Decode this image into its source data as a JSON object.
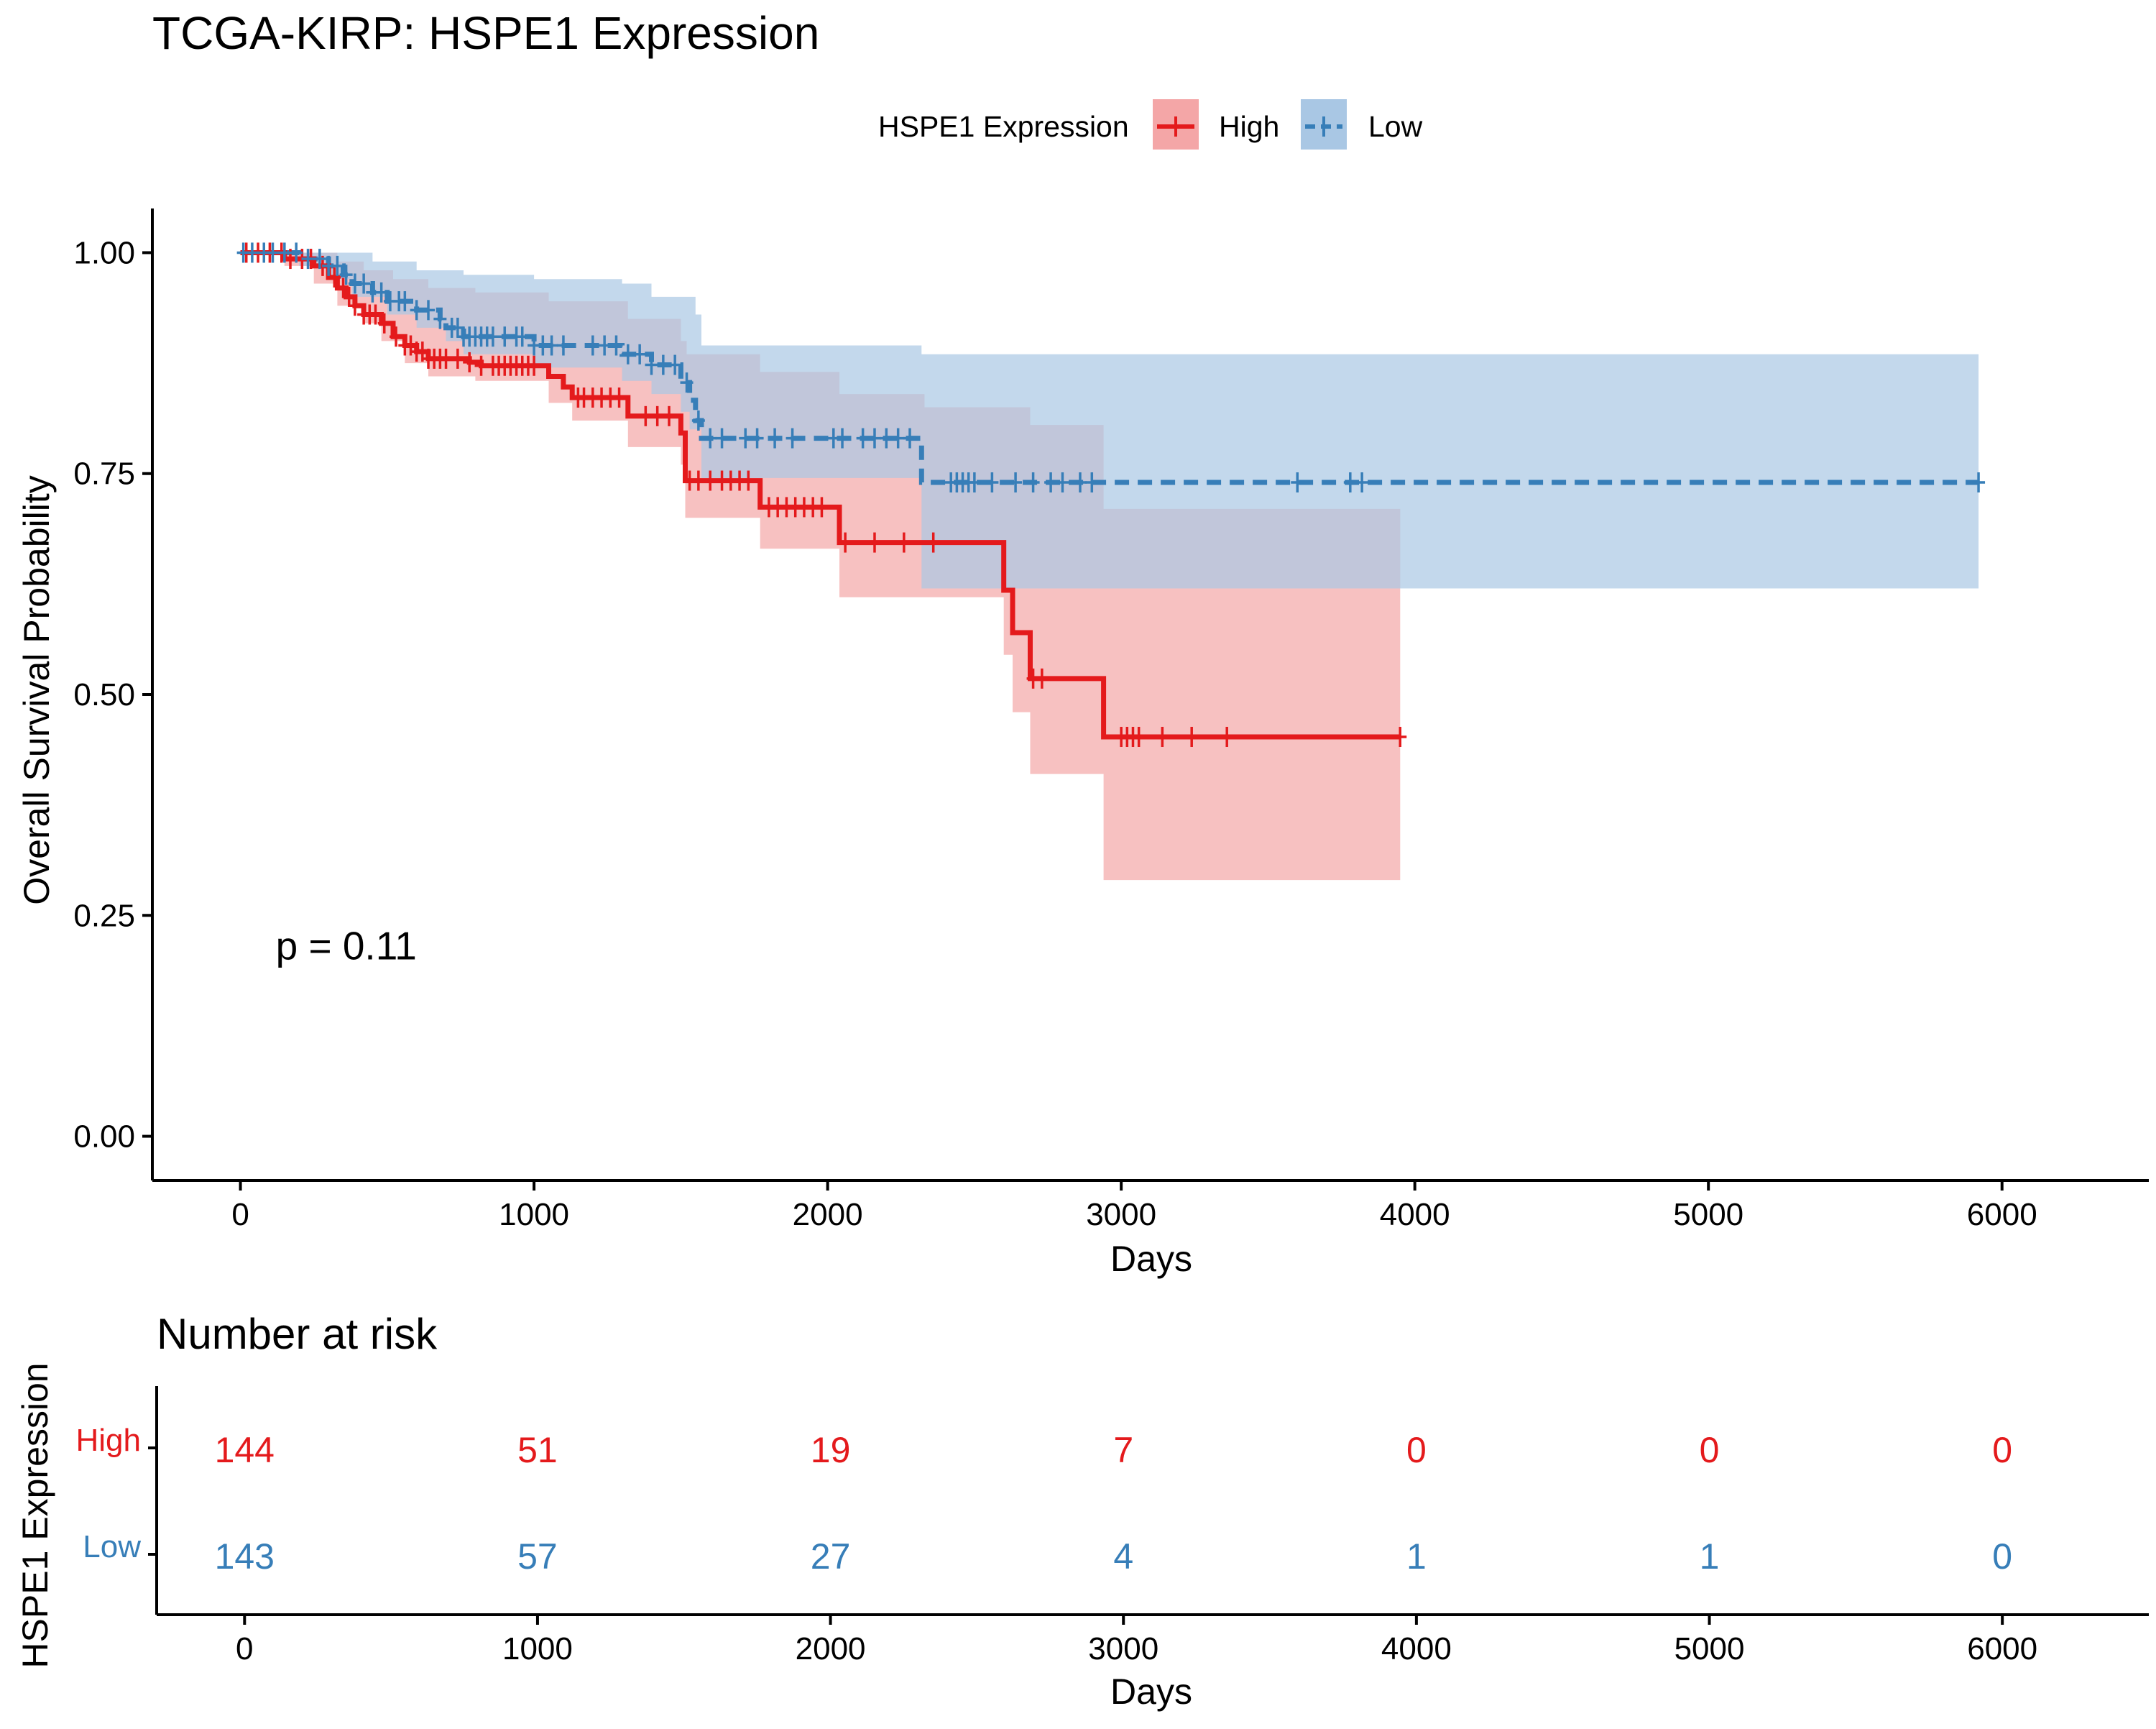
{
  "chart_data": {
    "type": "kaplan-meier",
    "title": "TCGA-KIRP: HSPE1 Expression",
    "xlabel": "Days",
    "ylabel": "Overall Survival Probability",
    "xlim": [
      -300,
      6500
    ],
    "ylim": [
      -0.05,
      1.05
    ],
    "xticks": [
      0,
      1000,
      2000,
      3000,
      4000,
      5000,
      6000
    ],
    "yticks": [
      0.0,
      0.25,
      0.5,
      0.75,
      1.0
    ],
    "ytick_labels": [
      "0.00",
      "0.25",
      "0.50",
      "0.75",
      "1.00"
    ],
    "legend": {
      "title": "HSPE1 Expression",
      "placement": "top",
      "entries": [
        "High",
        "Low"
      ]
    },
    "pvalue_text": "p = 0.11",
    "pvalue_pos": [
      120,
      0.2
    ],
    "series": [
      {
        "name": "High",
        "color": "#e41a1c",
        "band_color": "#f4a6a7",
        "dash": "solid",
        "steps": [
          [
            0,
            1.0
          ],
          [
            150,
            0.993
          ],
          [
            250,
            0.985
          ],
          [
            300,
            0.972
          ],
          [
            330,
            0.96
          ],
          [
            360,
            0.95
          ],
          [
            390,
            0.94
          ],
          [
            420,
            0.93
          ],
          [
            480,
            0.92
          ],
          [
            520,
            0.905
          ],
          [
            560,
            0.895
          ],
          [
            600,
            0.888
          ],
          [
            640,
            0.88
          ],
          [
            780,
            0.876
          ],
          [
            820,
            0.872
          ],
          [
            1050,
            0.86
          ],
          [
            1100,
            0.848
          ],
          [
            1130,
            0.836
          ],
          [
            1320,
            0.815
          ],
          [
            1500,
            0.796
          ],
          [
            1515,
            0.742
          ],
          [
            1770,
            0.712
          ],
          [
            2040,
            0.672
          ],
          [
            2600,
            0.618
          ],
          [
            2630,
            0.57
          ],
          [
            2690,
            0.518
          ],
          [
            2940,
            0.452
          ],
          [
            3950,
            0.452
          ]
        ],
        "upper": [
          [
            0,
            1.0
          ],
          [
            150,
            1.0
          ],
          [
            250,
            1.0
          ],
          [
            330,
            0.99
          ],
          [
            420,
            0.98
          ],
          [
            520,
            0.97
          ],
          [
            640,
            0.96
          ],
          [
            800,
            0.955
          ],
          [
            1050,
            0.945
          ],
          [
            1320,
            0.925
          ],
          [
            1500,
            0.9
          ],
          [
            1520,
            0.885
          ],
          [
            1770,
            0.865
          ],
          [
            2040,
            0.84
          ],
          [
            2330,
            0.825
          ],
          [
            2600,
            0.825
          ],
          [
            2690,
            0.805
          ],
          [
            2940,
            0.71
          ],
          [
            3950,
            0.71
          ]
        ],
        "lower": [
          [
            0,
            1.0
          ],
          [
            150,
            0.985
          ],
          [
            250,
            0.965
          ],
          [
            330,
            0.94
          ],
          [
            420,
            0.92
          ],
          [
            480,
            0.9
          ],
          [
            560,
            0.875
          ],
          [
            640,
            0.86
          ],
          [
            800,
            0.855
          ],
          [
            1050,
            0.83
          ],
          [
            1130,
            0.81
          ],
          [
            1320,
            0.78
          ],
          [
            1500,
            0.76
          ],
          [
            1515,
            0.7
          ],
          [
            1770,
            0.665
          ],
          [
            2040,
            0.61
          ],
          [
            2600,
            0.545
          ],
          [
            2630,
            0.48
          ],
          [
            2690,
            0.41
          ],
          [
            2940,
            0.29
          ],
          [
            3950,
            0.29
          ]
        ],
        "censor_x": [
          20,
          60,
          100,
          140,
          170,
          210,
          240,
          280,
          320,
          350,
          370,
          390,
          420,
          440,
          460,
          490,
          530,
          560,
          580,
          600,
          620,
          640,
          660,
          680,
          700,
          740,
          780,
          820,
          860,
          880,
          900,
          920,
          940,
          960,
          980,
          1000,
          1150,
          1170,
          1200,
          1230,
          1260,
          1290,
          1380,
          1420,
          1460,
          1530,
          1560,
          1600,
          1640,
          1670,
          1700,
          1730,
          1800,
          1830,
          1860,
          1890,
          1920,
          1950,
          1980,
          2060,
          2160,
          2260,
          2360,
          2700,
          2730,
          3000,
          3020,
          3040,
          3060,
          3140,
          3240,
          3360,
          3950
        ]
      },
      {
        "name": "Low",
        "color": "#377eb8",
        "band_color": "#a9c7e4",
        "dash": "dashed",
        "steps": [
          [
            0,
            1.0
          ],
          [
            200,
            0.993
          ],
          [
            300,
            0.985
          ],
          [
            350,
            0.975
          ],
          [
            380,
            0.965
          ],
          [
            450,
            0.955
          ],
          [
            500,
            0.945
          ],
          [
            600,
            0.935
          ],
          [
            680,
            0.925
          ],
          [
            700,
            0.915
          ],
          [
            760,
            0.905
          ],
          [
            1000,
            0.895
          ],
          [
            1300,
            0.885
          ],
          [
            1400,
            0.873
          ],
          [
            1500,
            0.853
          ],
          [
            1530,
            0.833
          ],
          [
            1550,
            0.81
          ],
          [
            1570,
            0.79
          ],
          [
            2320,
            0.74
          ],
          [
            5920,
            0.74
          ]
        ],
        "upper": [
          [
            0,
            1.0
          ],
          [
            300,
            1.0
          ],
          [
            450,
            0.99
          ],
          [
            600,
            0.98
          ],
          [
            760,
            0.975
          ],
          [
            1000,
            0.97
          ],
          [
            1300,
            0.965
          ],
          [
            1400,
            0.95
          ],
          [
            1550,
            0.93
          ],
          [
            1570,
            0.895
          ],
          [
            2320,
            0.885
          ],
          [
            5920,
            0.885
          ]
        ],
        "lower": [
          [
            0,
            1.0
          ],
          [
            200,
            0.985
          ],
          [
            300,
            0.97
          ],
          [
            380,
            0.95
          ],
          [
            500,
            0.93
          ],
          [
            600,
            0.915
          ],
          [
            700,
            0.9
          ],
          [
            760,
            0.885
          ],
          [
            1000,
            0.87
          ],
          [
            1300,
            0.855
          ],
          [
            1400,
            0.84
          ],
          [
            1500,
            0.82
          ],
          [
            1530,
            0.8
          ],
          [
            1570,
            0.745
          ],
          [
            2320,
            0.62
          ],
          [
            2940,
            0.62
          ],
          [
            5920,
            0.62
          ]
        ],
        "censor_x": [
          10,
          40,
          80,
          110,
          150,
          190,
          230,
          270,
          300,
          330,
          360,
          390,
          420,
          450,
          480,
          510,
          540,
          560,
          600,
          640,
          680,
          720,
          740,
          760,
          780,
          800,
          820,
          840,
          860,
          900,
          940,
          960,
          1000,
          1030,
          1060,
          1100,
          1200,
          1240,
          1280,
          1320,
          1360,
          1400,
          1440,
          1480,
          1520,
          1560,
          1600,
          1640,
          1720,
          1760,
          1820,
          1880,
          2020,
          2050,
          2120,
          2160,
          2200,
          2240,
          2280,
          2420,
          2440,
          2460,
          2480,
          2500,
          2560,
          2640,
          2700,
          2760,
          2800,
          2860,
          2900,
          3600,
          3780,
          3820,
          5920
        ]
      }
    ],
    "risk_table": {
      "title": "Number at risk",
      "ylabel": "HSPE1 Expression",
      "xlabel": "Days",
      "times": [
        0,
        1000,
        2000,
        3000,
        4000,
        5000,
        6000
      ],
      "tick_labels": [
        "0",
        "1000",
        "2000",
        "3000",
        "4000",
        "5000",
        "6000"
      ],
      "rows": [
        {
          "name": "High",
          "color": "#e41a1c",
          "values": [
            "144",
            "51",
            "19",
            "7",
            "0",
            "0",
            "0"
          ]
        },
        {
          "name": "Low",
          "color": "#377eb8",
          "values": [
            "143",
            "57",
            "27",
            "4",
            "1",
            "1",
            "0"
          ]
        }
      ]
    }
  }
}
